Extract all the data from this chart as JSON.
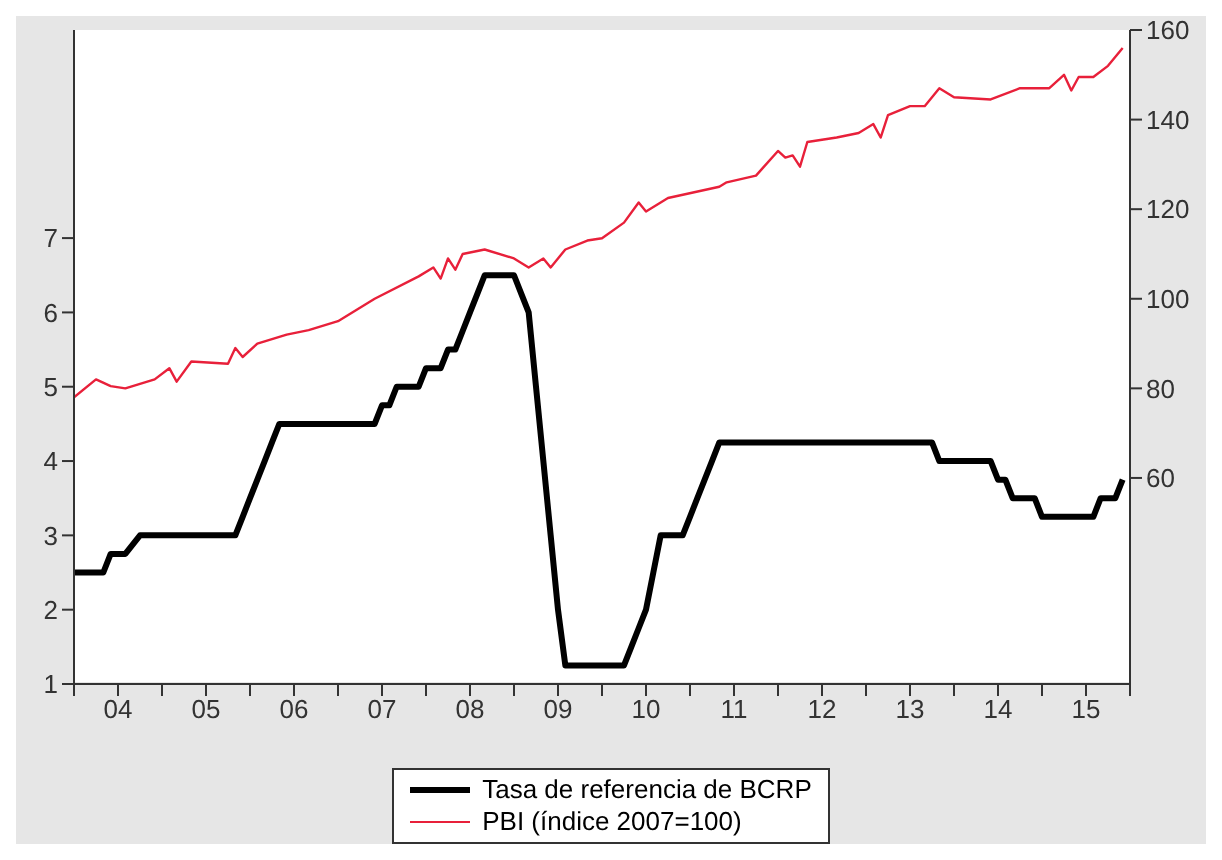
{
  "chart_data": {
    "type": "line",
    "legend": "bottom",
    "marker": "none",
    "line_style": "solid",
    "xlim": [
      "2004-01",
      "2016-01"
    ],
    "xticks": [
      {
        "value": "2004-01",
        "label": null
      },
      {
        "value": "2004-07",
        "label": "04"
      },
      {
        "value": "2005-01",
        "label": null
      },
      {
        "value": "2005-07",
        "label": "05"
      },
      {
        "value": "2006-01",
        "label": null
      },
      {
        "value": "2006-07",
        "label": "06"
      },
      {
        "value": "2007-01",
        "label": null
      },
      {
        "value": "2007-07",
        "label": "07"
      },
      {
        "value": "2008-01",
        "label": null
      },
      {
        "value": "2008-07",
        "label": "08"
      },
      {
        "value": "2009-01",
        "label": null
      },
      {
        "value": "2009-07",
        "label": "09"
      },
      {
        "value": "2010-01",
        "label": null
      },
      {
        "value": "2010-07",
        "label": "10"
      },
      {
        "value": "2011-01",
        "label": null
      },
      {
        "value": "2011-07",
        "label": "11"
      },
      {
        "value": "2012-01",
        "label": null
      },
      {
        "value": "2012-07",
        "label": "12"
      },
      {
        "value": "2013-01",
        "label": null
      },
      {
        "value": "2013-07",
        "label": "13"
      },
      {
        "value": "2014-01",
        "label": null
      },
      {
        "value": "2014-07",
        "label": "14"
      },
      {
        "value": "2015-01",
        "label": null
      },
      {
        "value": "2015-07",
        "label": "15"
      },
      {
        "value": "2016-01",
        "label": null
      }
    ],
    "ylim": [
      1,
      9.8
    ],
    "yticks": [
      1,
      2,
      3,
      4,
      5,
      6,
      7
    ],
    "y2lim": [
      14,
      160
    ],
    "y2ticks": [
      60,
      80,
      100,
      120,
      140,
      160
    ],
    "series": [
      {
        "name": "Tasa de referencia de BCRP",
        "color": "#000000",
        "x": [
          "2004-01",
          "2004-05",
          "2004-06",
          "2004-08",
          "2004-10",
          "2005-11",
          "2005-12",
          "2006-01",
          "2006-02",
          "2006-03",
          "2006-04",
          "2006-05",
          "2007-06",
          "2007-07",
          "2007-08",
          "2007-09",
          "2007-12",
          "2008-01",
          "2008-03",
          "2008-04",
          "2008-05",
          "2008-06",
          "2008-07",
          "2008-08",
          "2008-09",
          "2009-01",
          "2009-02",
          "2009-03",
          "2009-04",
          "2009-05",
          "2009-06",
          "2009-07",
          "2009-08",
          "2010-04",
          "2010-05",
          "2010-06",
          "2010-07",
          "2010-08",
          "2010-09",
          "2010-12",
          "2011-01",
          "2011-02",
          "2011-03",
          "2011-04",
          "2011-05",
          "2013-10",
          "2013-11",
          "2014-06",
          "2014-07",
          "2014-08",
          "2014-09",
          "2014-12",
          "2015-01",
          "2015-08",
          "2015-09",
          "2015-11",
          "2015-12"
        ],
        "values": [
          2.5,
          2.5,
          2.75,
          2.75,
          3.0,
          3.0,
          3.25,
          3.5,
          3.75,
          4.0,
          4.25,
          4.5,
          4.5,
          4.75,
          4.75,
          5.0,
          5.0,
          5.25,
          5.25,
          5.5,
          5.5,
          5.75,
          6.0,
          6.25,
          6.5,
          6.5,
          6.25,
          6.0,
          5.0,
          4.0,
          3.0,
          2.0,
          1.25,
          1.25,
          1.5,
          1.75,
          2.0,
          2.5,
          3.0,
          3.0,
          3.25,
          3.5,
          3.75,
          4.0,
          4.25,
          4.25,
          4.0,
          4.0,
          3.75,
          3.75,
          3.5,
          3.5,
          3.25,
          3.25,
          3.5,
          3.5,
          3.75
        ]
      },
      {
        "name": "PBI (índice 2007=100)",
        "color": "#e8203a",
        "axis": "y2",
        "x": [
          "2004-01",
          "2004-04",
          "2004-06",
          "2004-08",
          "2004-12",
          "2005-02",
          "2005-03",
          "2005-05",
          "2005-10",
          "2005-11",
          "2005-12",
          "2006-02",
          "2006-06",
          "2006-09",
          "2007-01",
          "2007-03",
          "2007-06",
          "2007-12",
          "2008-02",
          "2008-03",
          "2008-04",
          "2008-05",
          "2008-06",
          "2008-09",
          "2009-01",
          "2009-03",
          "2009-05",
          "2009-06",
          "2009-08",
          "2009-11",
          "2010-01",
          "2010-04",
          "2010-06",
          "2010-07",
          "2010-10",
          "2011-05",
          "2011-06",
          "2011-10",
          "2012-01",
          "2012-02",
          "2012-03",
          "2012-04",
          "2012-05",
          "2012-09",
          "2012-12",
          "2013-02",
          "2013-03",
          "2013-04",
          "2013-07",
          "2013-09",
          "2013-11",
          "2014-01",
          "2014-06",
          "2014-10",
          "2015-02",
          "2015-04",
          "2015-05",
          "2015-06",
          "2015-08",
          "2015-10",
          "2015-12"
        ],
        "values": [
          78,
          82,
          80.5,
          80,
          82,
          84.5,
          81.5,
          86,
          85.5,
          89,
          87,
          90,
          92,
          93,
          95,
          97,
          100,
          105,
          107,
          104.5,
          109,
          106.5,
          110,
          111,
          109,
          107,
          109,
          107,
          111,
          113,
          113.5,
          117,
          121.5,
          119.5,
          122.5,
          125,
          126,
          127.5,
          133,
          131.5,
          132,
          129.5,
          135,
          136,
          137,
          139,
          136,
          141,
          143,
          143,
          147,
          145,
          144.5,
          147,
          147,
          150,
          146.5,
          149.5,
          149.5,
          152,
          156
        ]
      }
    ]
  }
}
